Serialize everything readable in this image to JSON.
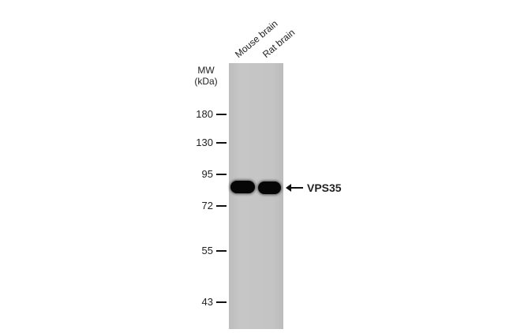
{
  "lanes": [
    {
      "label": "Mouse brain"
    },
    {
      "label": "Rat brain"
    }
  ],
  "mw_label": "MW\n(kDa)",
  "mw_title": "MW",
  "mw_unit": "(kDa)",
  "markers": [
    "180",
    "130",
    "95",
    "72",
    "55",
    "43"
  ],
  "band_target": "VPS35",
  "colors": {
    "membrane": "#c4c4c4",
    "band": "#060606"
  }
}
